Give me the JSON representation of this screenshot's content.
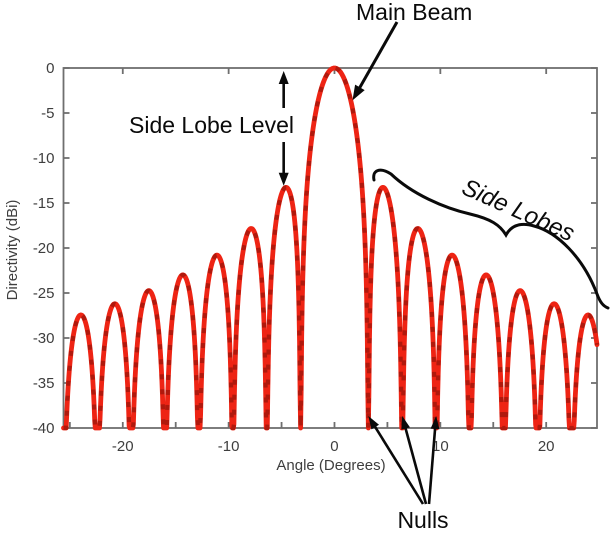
{
  "figure": {
    "background": "#ffffff",
    "colors": {
      "curve": "#ee2414",
      "curve_dash_overlay": "#b0190d",
      "axis": "#6f6f6f",
      "tick_labels": "#3e3e3e",
      "annotations": "#0a0a0a"
    }
  },
  "chart_data": {
    "type": "line",
    "title": "",
    "xlabel": "Angle (Degrees)",
    "ylabel": "Directivity (dBi)",
    "xlim": [
      -25.6,
      24.8
    ],
    "ylim": [
      -40,
      0
    ],
    "grid": false,
    "legend": null,
    "axes": {
      "x_labeled_ticks": [
        -20,
        -10,
        0,
        10,
        20
      ],
      "x_minor_ticks": [
        -25,
        -15,
        -5,
        5,
        15
      ],
      "x_top_ticks": [
        -20,
        -10,
        0,
        10,
        20
      ],
      "y_ticks": [
        0,
        -5,
        -10,
        -15,
        -20,
        -25,
        -30,
        -35,
        -40
      ]
    },
    "model": {
      "description": "Uniform linear array factor (sinc-shaped beam pattern), symmetric about 0 degrees",
      "formula_db": "D(a) = 20*log10(|sin(pi*u)/(pi*u)|), u = a / 3.2",
      "first_null_deg": 3.2,
      "clip_db": -40,
      "sampling_step_deg": 0.05
    },
    "key_points": {
      "main_beam_peak": {
        "angle_deg": 0,
        "db": 0
      },
      "side_lobe_peaks_symmetric": [
        {
          "angle_deg": 4.8,
          "db": -13.3
        },
        {
          "angle_deg": 8.0,
          "db": -17.8
        },
        {
          "angle_deg": 11.2,
          "db": -20.8
        },
        {
          "angle_deg": 14.4,
          "db": -23.0
        },
        {
          "angle_deg": 17.6,
          "db": -24.7
        },
        {
          "angle_deg": 20.8,
          "db": -26.2
        },
        {
          "angle_deg": 24.0,
          "db": -27.4
        }
      ],
      "nulls_deg_symmetric": [
        3.2,
        6.4,
        9.6,
        12.8,
        16.0,
        19.2,
        22.4,
        25.6
      ]
    }
  },
  "annotations": {
    "main_beam": {
      "label": "Main Beam",
      "arrow_to": {
        "angle_deg": 1.7,
        "db": -3.6
      }
    },
    "side_lobe_level": {
      "label": "Side Lobe Level",
      "at_angle_deg": -4.8,
      "from_db": 0,
      "to_db": -13.3
    },
    "side_lobes": {
      "label": "Side Lobes"
    },
    "nulls": {
      "label": "Nulls",
      "arrow_to_degs": [
        3.2,
        6.4,
        9.6
      ]
    }
  }
}
